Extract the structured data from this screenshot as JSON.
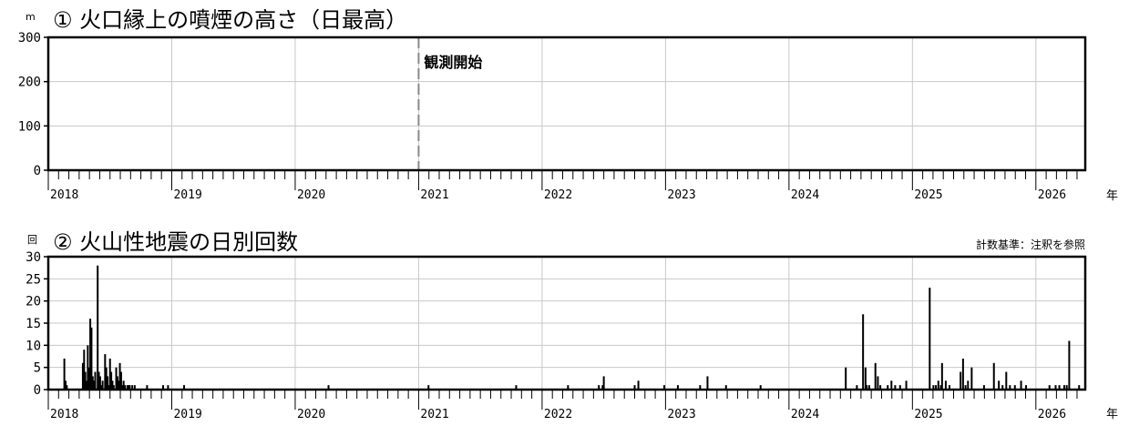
{
  "chart_data": [
    {
      "type": "bar",
      "title": "① 火口縁上の噴煙の高さ（日最高）",
      "ylabel_unit": "m",
      "ylim": [
        0,
        300
      ],
      "yticks": [
        0,
        100,
        200,
        300
      ],
      "x_range": [
        2018.0,
        2026.4
      ],
      "year_labels": [
        "2018",
        "2019",
        "2020",
        "2021",
        "2022",
        "2023",
        "2024",
        "2025",
        "2026"
      ],
      "xlabel_unit": "年",
      "grid": true,
      "annotation": {
        "text": "観測開始",
        "x": 2021.0
      },
      "series": [
        {
          "values": []
        }
      ]
    },
    {
      "type": "bar",
      "title": "② 火山性地震の日別回数",
      "ylabel_unit": "回",
      "note": "計数基準：注釈を参照",
      "ylim": [
        0,
        30
      ],
      "yticks": [
        0,
        5,
        10,
        15,
        20,
        25,
        30
      ],
      "x_range": [
        2018.0,
        2026.4
      ],
      "year_labels": [
        "2018",
        "2019",
        "2020",
        "2021",
        "2022",
        "2023",
        "2024",
        "2025",
        "2026"
      ],
      "xlabel_unit": "年",
      "grid": true,
      "series": [
        {
          "x": [
            2018.13,
            2018.14,
            2018.15,
            2018.28,
            2018.29,
            2018.3,
            2018.31,
            2018.32,
            2018.33,
            2018.34,
            2018.35,
            2018.36,
            2018.37,
            2018.38,
            2018.4,
            2018.41,
            2018.42,
            2018.43,
            2018.44,
            2018.46,
            2018.47,
            2018.48,
            2018.49,
            2018.5,
            2018.51,
            2018.52,
            2018.53,
            2018.55,
            2018.56,
            2018.57,
            2018.58,
            2018.59,
            2018.6,
            2018.61,
            2018.62,
            2018.64,
            2018.65,
            2018.66,
            2018.68,
            2018.7,
            2018.8,
            2018.93,
            2018.97,
            2019.1,
            2020.27,
            2021.08,
            2021.79,
            2022.21,
            2022.46,
            2022.49,
            2022.5,
            2022.75,
            2022.78,
            2022.99,
            2023.1,
            2023.28,
            2023.34,
            2023.49,
            2023.77,
            2024.46,
            2024.55,
            2024.6,
            2024.62,
            2024.63,
            2024.65,
            2024.7,
            2024.72,
            2024.74,
            2024.8,
            2024.83,
            2024.86,
            2024.9,
            2024.95,
            2025.14,
            2025.17,
            2025.19,
            2025.21,
            2025.23,
            2025.24,
            2025.27,
            2025.3,
            2025.39,
            2025.41,
            2025.43,
            2025.45,
            2025.48,
            2025.58,
            2025.66,
            2025.7,
            2025.73,
            2025.76,
            2025.79,
            2025.83,
            2025.88,
            2025.92,
            2026.11,
            2026.16,
            2026.19,
            2026.23,
            2026.25,
            2026.27,
            2026.35
          ],
          "values": [
            7,
            2,
            1,
            6,
            9,
            4,
            2,
            10,
            5,
            16,
            14,
            3,
            2,
            4,
            28,
            4,
            3,
            1,
            2,
            8,
            5,
            3,
            1,
            7,
            4,
            2,
            1,
            5,
            3,
            2,
            6,
            4,
            1,
            2,
            1,
            1,
            1,
            1,
            1,
            1,
            1,
            1,
            1,
            1,
            1,
            1,
            1,
            1,
            1,
            1,
            3,
            1,
            2,
            1,
            1,
            1,
            3,
            1,
            1,
            5,
            1,
            17,
            5,
            1,
            1,
            6,
            3,
            1,
            1,
            2,
            1,
            1,
            2,
            23,
            1,
            1,
            2,
            1,
            6,
            2,
            1,
            4,
            7,
            1,
            2,
            5,
            1,
            6,
            2,
            1,
            4,
            1,
            1,
            2,
            1,
            1,
            1,
            1,
            1,
            1,
            11,
            1
          ]
        }
      ]
    }
  ]
}
